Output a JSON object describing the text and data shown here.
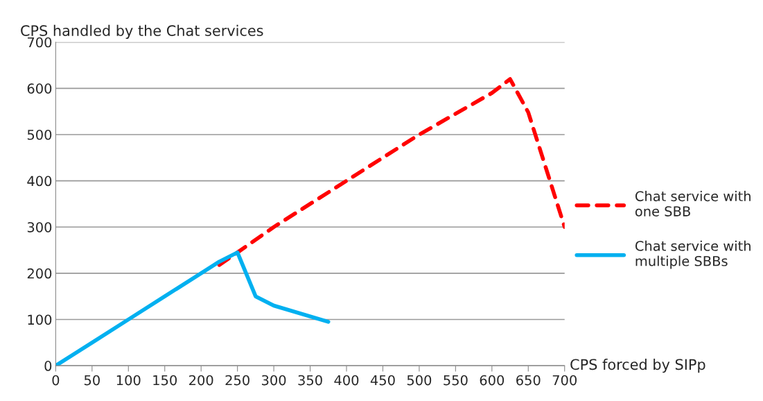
{
  "chart_data": {
    "type": "line",
    "xlabel": "CPS forced by SIPp",
    "ylabel": "CPS handled by the Chat services",
    "xlim": [
      0,
      700
    ],
    "xticks": [
      0,
      50,
      100,
      150,
      200,
      250,
      300,
      350,
      400,
      450,
      500,
      550,
      600,
      650,
      700
    ],
    "ylim": [
      0,
      700
    ],
    "yticks": [
      0,
      100,
      200,
      300,
      400,
      500,
      600,
      700
    ],
    "grid": "y",
    "legend": "right",
    "series": [
      {
        "name": "Chat service with\none SBB",
        "color": "#ff0000",
        "line_style": "dashed",
        "x": [
          225,
          250,
          300,
          400,
          500,
          600,
          625,
          650,
          700
        ],
        "values": [
          218,
          245,
          300,
          400,
          500,
          590,
          620,
          548,
          300
        ]
      },
      {
        "name": "Chat service with\nmultiple SBBs",
        "color": "#00b0f0",
        "line_style": "solid",
        "x": [
          0,
          50,
          100,
          150,
          200,
          225,
          250,
          275,
          300,
          375
        ],
        "values": [
          0,
          50,
          100,
          150,
          200,
          225,
          245,
          150,
          130,
          95
        ]
      }
    ]
  }
}
